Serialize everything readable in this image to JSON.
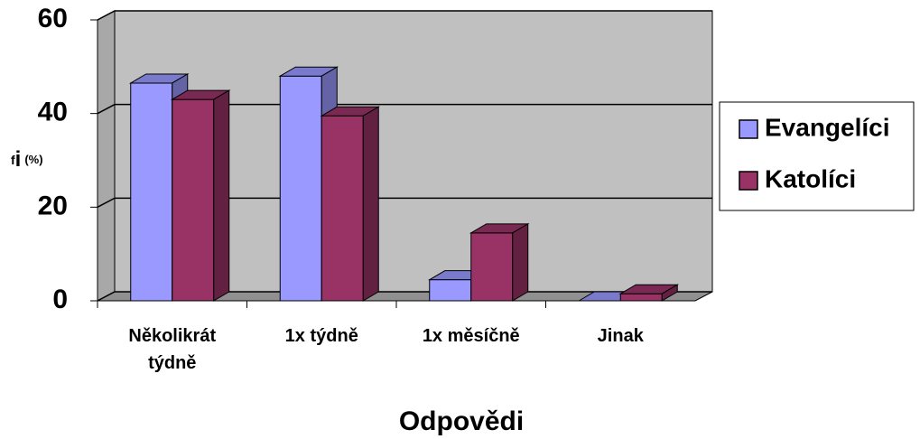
{
  "chart_data": {
    "type": "bar3d",
    "categories": [
      "Několikrát týdně",
      "1x týdně",
      "1x měsíčně",
      "Jinak"
    ],
    "series": [
      {
        "name": "Evangelíci",
        "color": "#9999ff",
        "values": [
          46.5,
          48,
          4.5,
          0
        ]
      },
      {
        "name": "Katolíci",
        "color": "#993366",
        "values": [
          43,
          39.5,
          14.5,
          1.5
        ]
      }
    ],
    "ylim": [
      0,
      60
    ],
    "yticks": [
      0,
      20,
      40,
      60
    ],
    "grid": true,
    "ylabel": [
      "f",
      "i",
      "(%)"
    ],
    "xlabel": "Odpovědi",
    "legend": "right"
  }
}
